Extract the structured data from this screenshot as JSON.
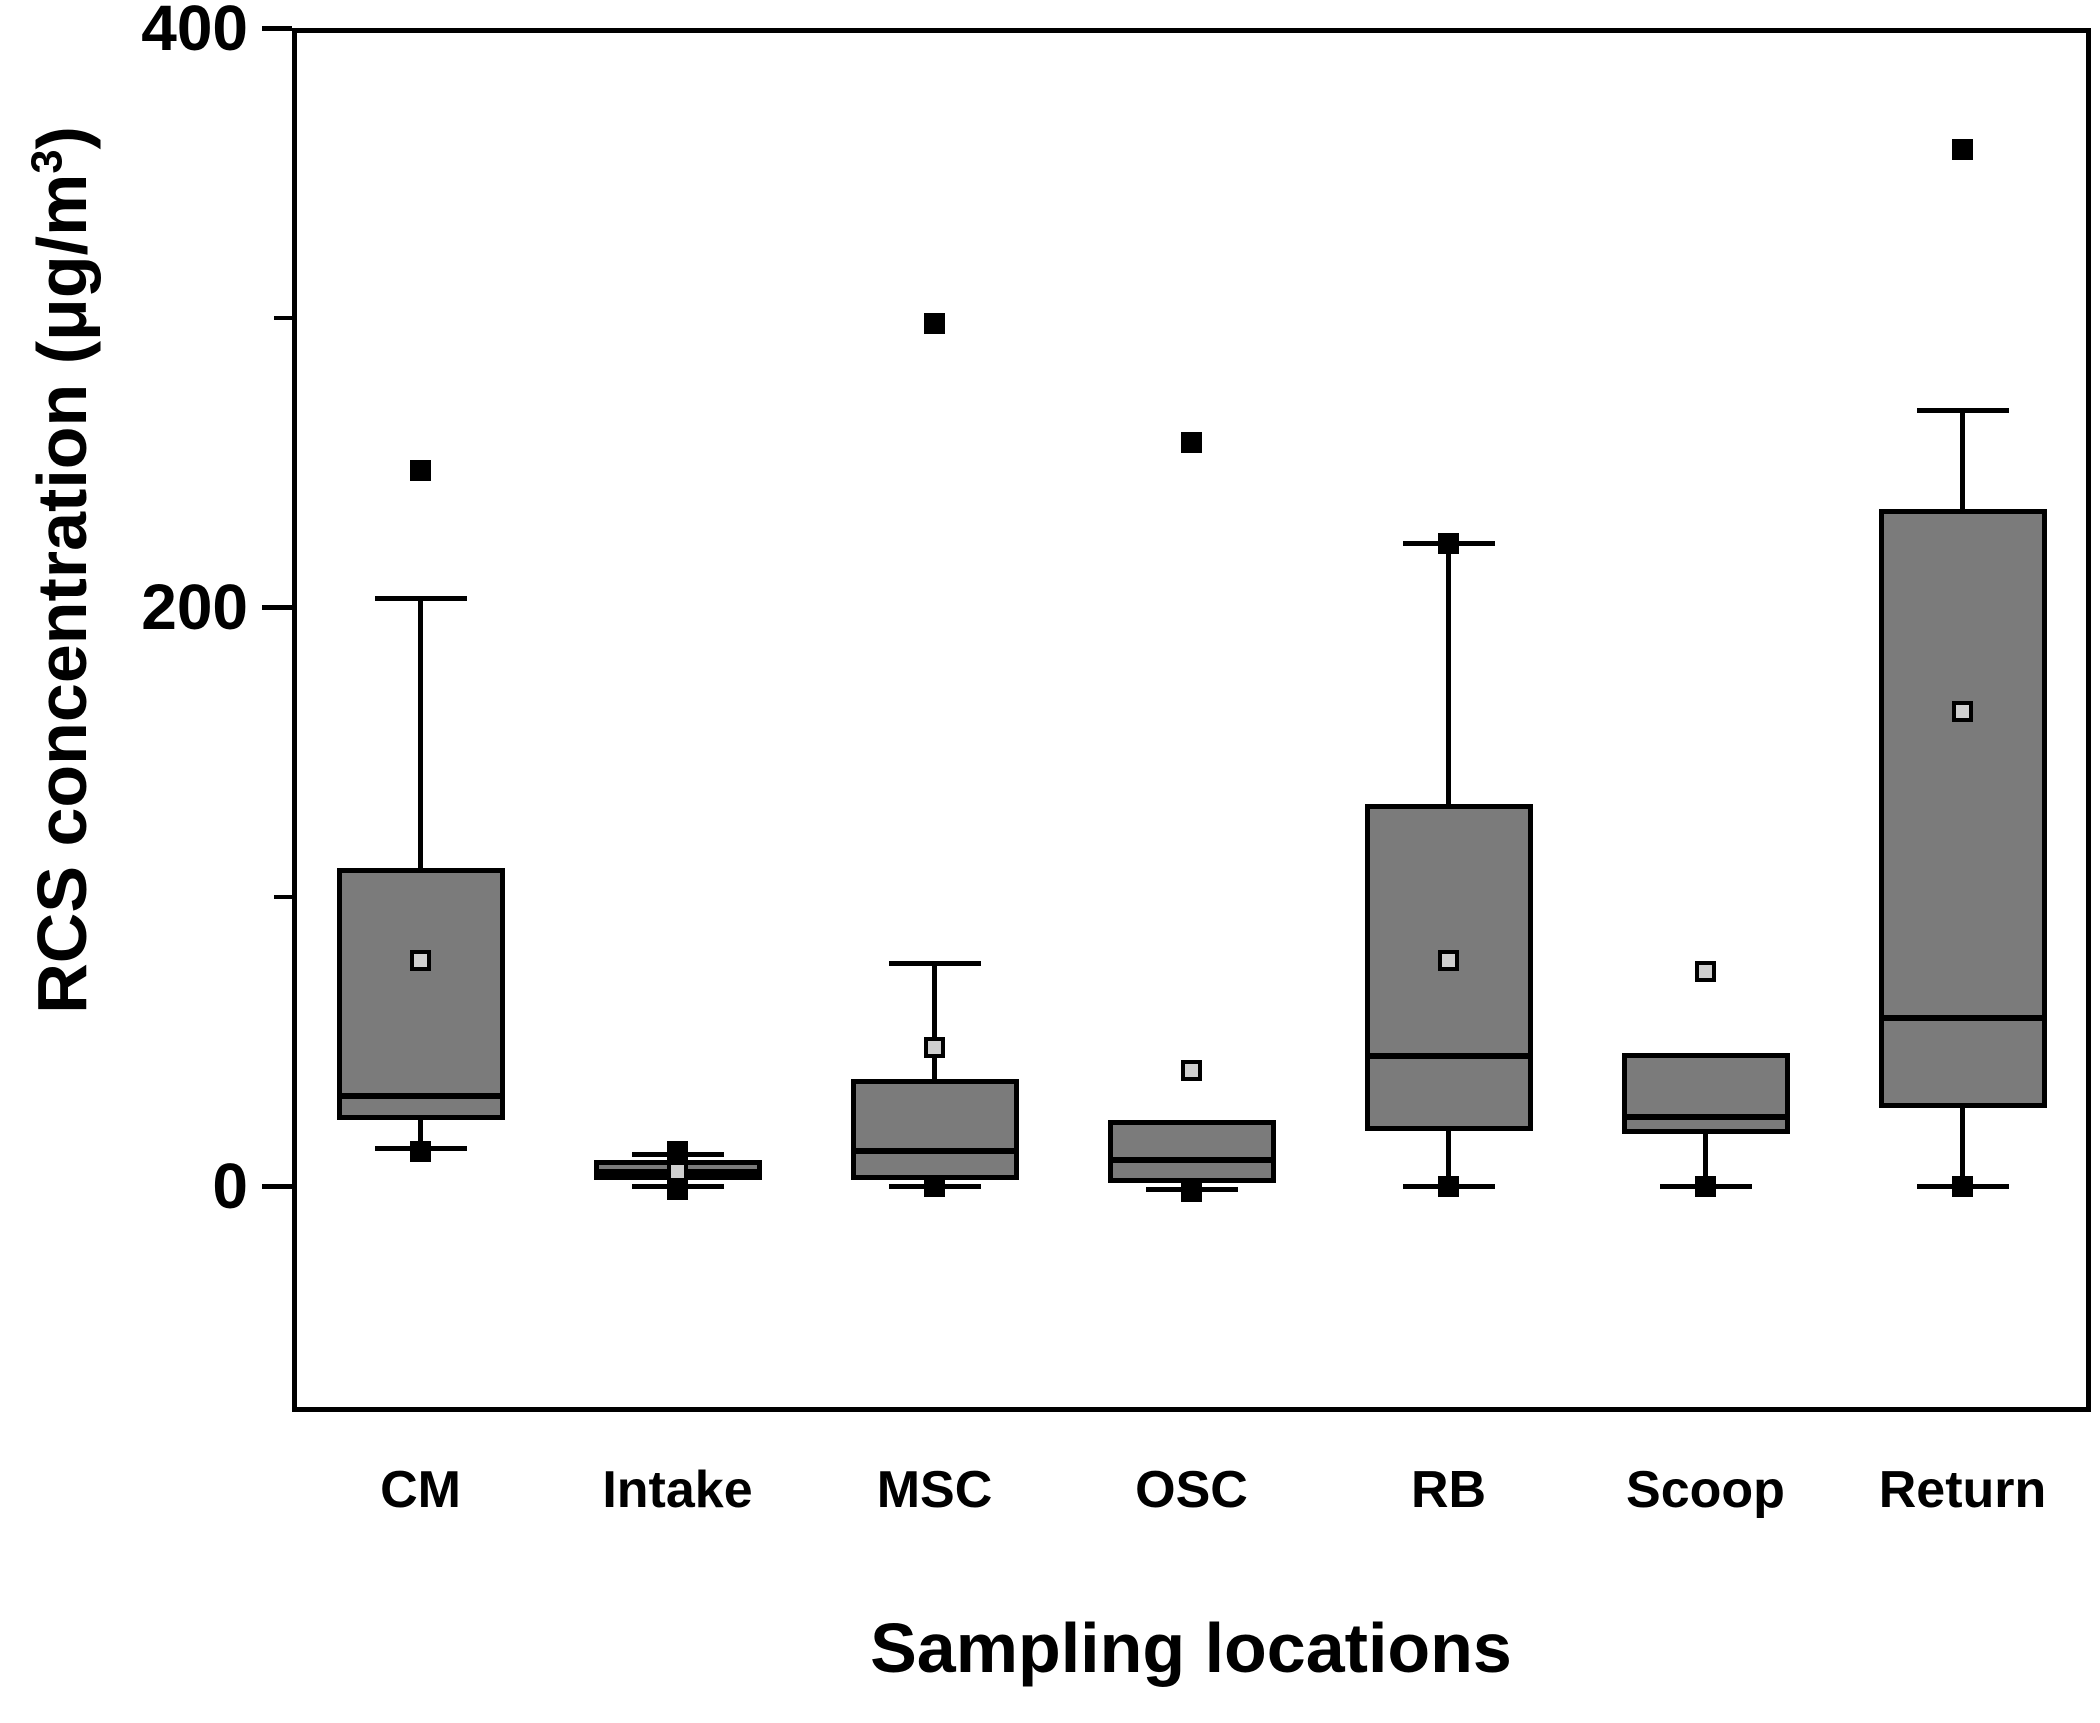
{
  "figure": {
    "background": "#ffffff",
    "box_fill": "#7b7b7b",
    "line_color": "#000000",
    "mean_marker_fill": "#cfcfcf",
    "point_marker_color": "#000000"
  },
  "chart_data": {
    "type": "box",
    "title": "",
    "xlabel": "Sampling locations",
    "ylabel": "RCS concentration (μg/m³)",
    "ylabel_parts": [
      "RCS concentration (μg/m",
      "3",
      ")"
    ],
    "ylim": [
      -78,
      400
    ],
    "yticks_major": [
      0,
      200,
      400
    ],
    "yticks_minor": [
      100,
      300
    ],
    "grid": false,
    "legend": "none",
    "categories": [
      "CM",
      "Intake",
      "MSC",
      "OSC",
      "RB",
      "Scoop",
      "Return"
    ],
    "series": [
      {
        "name": "CM",
        "q1": 23,
        "median": 31,
        "q3": 110,
        "whisker_low": 13,
        "whisker_high": 203,
        "mean": 78,
        "point_markers": [
          247,
          12
        ]
      },
      {
        "name": "Intake",
        "q1": 2,
        "median": 5,
        "q3": 9,
        "whisker_low": 0,
        "whisker_high": 11,
        "mean": 5,
        "point_markers": [
          12,
          -1
        ]
      },
      {
        "name": "MSC",
        "q1": 2,
        "median": 12,
        "q3": 37,
        "whisker_low": 0,
        "whisker_high": 77,
        "mean": 48,
        "point_markers": [
          298,
          0
        ]
      },
      {
        "name": "OSC",
        "q1": 1,
        "median": 9,
        "q3": 23,
        "whisker_low": -1,
        "whisker_high": null,
        "mean": 40,
        "point_markers": [
          257,
          -2
        ]
      },
      {
        "name": "RB",
        "q1": 19,
        "median": 45,
        "q3": 132,
        "whisker_low": 0,
        "whisker_high": 222,
        "mean": 78,
        "point_markers": [
          222,
          0
        ]
      },
      {
        "name": "Scoop",
        "q1": 18,
        "median": 24,
        "q3": 46,
        "whisker_low": 0,
        "whisker_high": null,
        "mean": 74,
        "point_markers": [
          0
        ]
      },
      {
        "name": "Return",
        "q1": 27,
        "median": 58,
        "q3": 234,
        "whisker_low": 0,
        "whisker_high": 268,
        "mean": 164,
        "point_markers": [
          358,
          0
        ]
      }
    ]
  }
}
